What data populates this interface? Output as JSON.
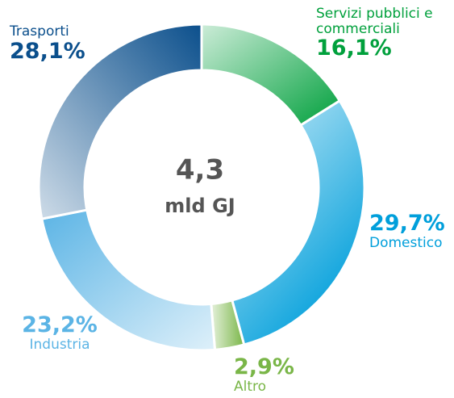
{
  "chart_data": {
    "type": "donut",
    "center_text": [
      "4,3",
      "mld GJ"
    ],
    "categories": [
      "Servizi pubblici e commerciali",
      "Domestico",
      "Altro",
      "Industria",
      "Trasporti"
    ],
    "values": [
      16.1,
      29.7,
      2.9,
      23.2,
      28.1
    ],
    "value_labels": [
      "16,1%",
      "29,7%",
      "2,9%",
      "23,2%",
      "28,1%"
    ],
    "colors": [
      "#00a03c",
      "#009fdb",
      "#7ab648",
      "#5bb4e5",
      "#0b4f8c"
    ]
  }
}
